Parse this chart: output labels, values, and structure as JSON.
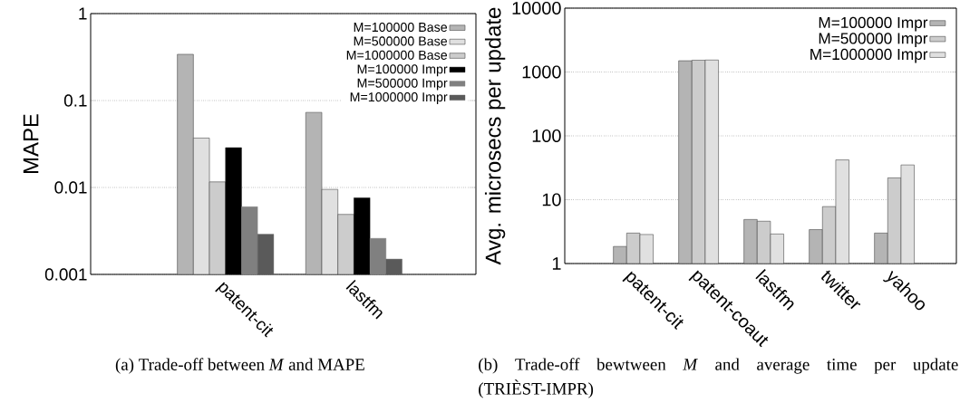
{
  "chart_data": [
    {
      "type": "bar",
      "ylabel": "MAPE",
      "log": "y",
      "grid": "y",
      "legend": "top right",
      "categories": [
        "patent-cit",
        "lastfm"
      ],
      "ylim": [
        0.001,
        1
      ],
      "yticks": [
        0.001,
        0.01,
        0.1,
        1
      ],
      "series": [
        {
          "name": "M=100000 Base",
          "color": "#b4b4b4",
          "values": [
            0.34,
            0.073
          ]
        },
        {
          "name": "M=500000 Base",
          "color": "#e0e0e0",
          "values": [
            0.037,
            0.0095
          ]
        },
        {
          "name": "M=1000000 Base",
          "color": "#cccccc",
          "values": [
            0.0116,
            0.0049
          ]
        },
        {
          "name": "M=100000 Impr",
          "color": "#000000",
          "values": [
            0.0287,
            0.0076
          ]
        },
        {
          "name": "M=500000 Impr",
          "color": "#808080",
          "values": [
            0.006,
            0.0026
          ]
        },
        {
          "name": "M=1000000 Impr",
          "color": "#5a5a5a",
          "values": [
            0.0029,
            0.0015
          ]
        }
      ],
      "annotations": [
        "(a)  Trade-off between *M* and MAPE"
      ]
    },
    {
      "type": "bar",
      "ylabel": "Avg. microsecs per update",
      "log": "y",
      "grid": "y",
      "legend": "top right",
      "categories": [
        "patent-cit",
        "patent-coaut",
        "lastfm",
        "twitter",
        "yahoo"
      ],
      "ylim": [
        1,
        10000
      ],
      "yticks": [
        1,
        10,
        100,
        1000,
        10000
      ],
      "series": [
        {
          "name": "M=100000 Impr",
          "color": "#b4b4b4",
          "values": [
            1.85,
            1500,
            4.9,
            3.4,
            3.0
          ]
        },
        {
          "name": "M=500000 Impr",
          "color": "#cccccc",
          "values": [
            3.0,
            1530,
            4.6,
            7.8,
            22
          ]
        },
        {
          "name": "M=1000000 Impr",
          "color": "#e0e0e0",
          "values": [
            2.85,
            1540,
            2.9,
            42,
            35
          ]
        }
      ],
      "annotations": [
        "(b)  Trade-off bewtween *M* and average time per update (TRIÈST-IMPR)"
      ]
    }
  ]
}
